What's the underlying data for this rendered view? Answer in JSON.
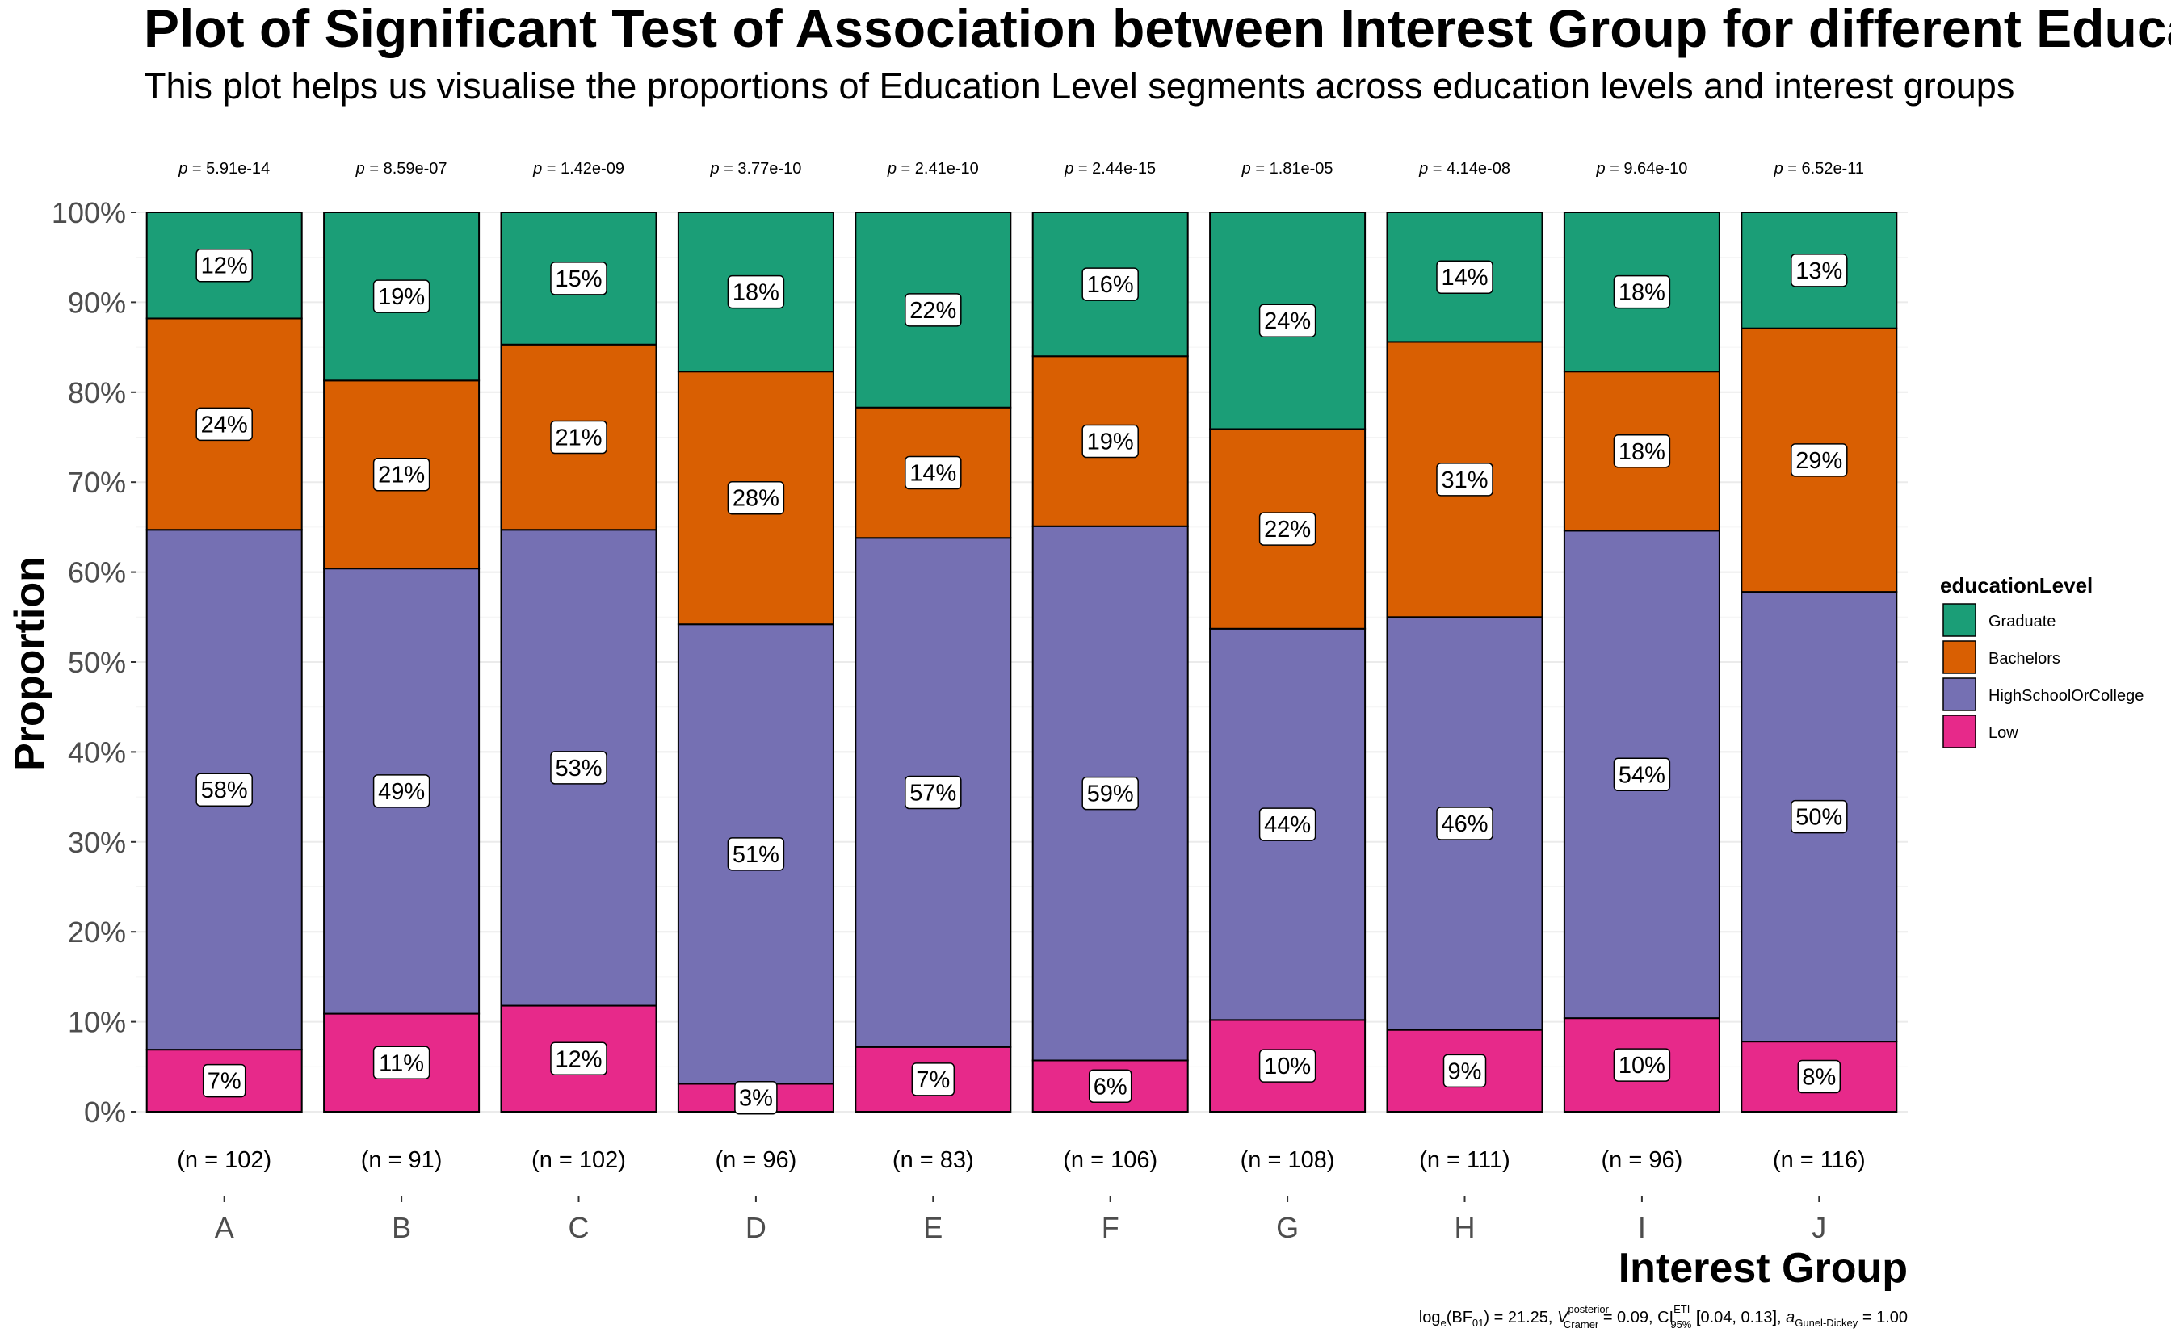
{
  "chart_data": {
    "type": "bar",
    "stacked": true,
    "title": "Plot of Significant Test of Association between Interest Group for different Education Level",
    "subtitle": "This plot helps us visualise the proportions of Education Level segments across education levels and interest groups",
    "xlabel": "Interest Group",
    "ylabel": "Proportion",
    "ylim": [
      0,
      100
    ],
    "y_ticks": [
      "0%",
      "10%",
      "20%",
      "30%",
      "40%",
      "50%",
      "60%",
      "70%",
      "80%",
      "90%",
      "100%"
    ],
    "categories": [
      "A",
      "B",
      "C",
      "D",
      "E",
      "F",
      "G",
      "H",
      "I",
      "J"
    ],
    "p_values": [
      "p = 5.91e-14",
      "p = 8.59e-07",
      "p = 1.42e-09",
      "p = 3.77e-10",
      "p = 2.41e-10",
      "p = 2.44e-15",
      "p = 1.81e-05",
      "p = 4.14e-08",
      "p = 9.64e-10",
      "p = 6.52e-11"
    ],
    "counts": [
      "(n = 102)",
      "(n = 91)",
      "(n = 102)",
      "(n = 96)",
      "(n = 83)",
      "(n = 106)",
      "(n = 108)",
      "(n = 111)",
      "(n = 96)",
      "(n = 116)"
    ],
    "legend_title": "educationLevel",
    "legend_position": "right",
    "grid": true,
    "series": [
      {
        "name": "Graduate",
        "color": "#1B9E77",
        "values": [
          11.8,
          18.7,
          14.7,
          17.7,
          21.7,
          16.0,
          24.1,
          14.4,
          17.7,
          12.9
        ],
        "labels": [
          "12%",
          "19%",
          "15%",
          "18%",
          "22%",
          "16%",
          "24%",
          "14%",
          "18%",
          "13%"
        ]
      },
      {
        "name": "Bachelors",
        "color": "#D95F02",
        "values": [
          23.5,
          20.9,
          20.6,
          28.1,
          14.5,
          18.9,
          22.2,
          30.6,
          17.7,
          29.3
        ],
        "labels": [
          "24%",
          "21%",
          "21%",
          "28%",
          "14%",
          "19%",
          "22%",
          "31%",
          "18%",
          "29%"
        ]
      },
      {
        "name": "HighSchoolOrCollege",
        "color": "#7570B3",
        "values": [
          57.8,
          49.5,
          52.9,
          51.1,
          56.6,
          59.4,
          43.5,
          45.9,
          54.2,
          50.0
        ],
        "labels": [
          "58%",
          "49%",
          "53%",
          "51%",
          "57%",
          "59%",
          "44%",
          "46%",
          "54%",
          "50%"
        ]
      },
      {
        "name": "Low",
        "color": "#E7298A",
        "values": [
          6.9,
          10.9,
          11.8,
          3.1,
          7.2,
          5.7,
          10.2,
          9.1,
          10.4,
          7.8
        ],
        "labels": [
          "7%",
          "11%",
          "12%",
          "3%",
          "7%",
          "6%",
          "10%",
          "9%",
          "10%",
          "8%"
        ]
      }
    ],
    "caption": {
      "bf": "log",
      "bf_sub": "e",
      "bf_arg": "(BF",
      "bf_arg_sub": "01",
      "bf_val": ") = 21.25, ",
      "v_hat": "V",
      "v_sup": "posterior",
      "v_sub": "Cramer",
      "v_val": " = 0.09, CI",
      "ci_sup": "ETI",
      "ci_sub": "95%",
      "ci_val": " [0.04, 0.13], ",
      "a_sym": "a",
      "a_sub": "Gunel-Dickey",
      "a_val": " = 1.00"
    }
  }
}
